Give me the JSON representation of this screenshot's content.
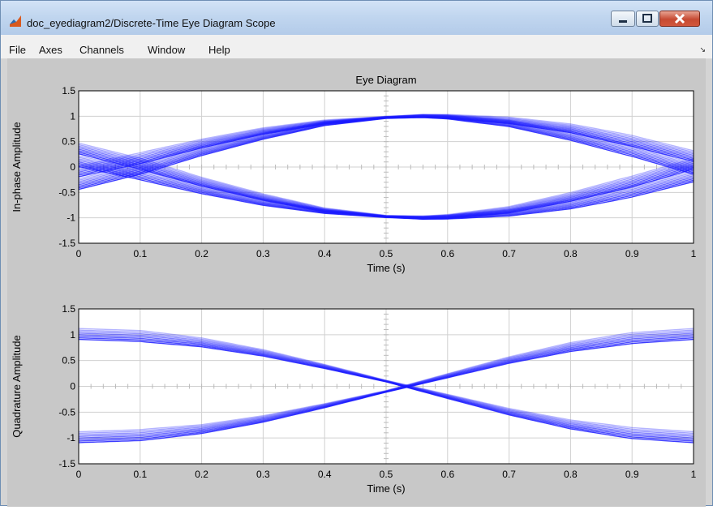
{
  "window": {
    "title": "doc_eyediagram2/Discrete-Time Eye Diagram Scope"
  },
  "menu": [
    "File",
    "Axes",
    "Channels",
    "Window",
    "Help"
  ],
  "colors": {
    "trace": "#1a1aff",
    "background": "#c8c8c8",
    "titlebar": "#c1d6ef"
  },
  "chart_data": [
    {
      "type": "line",
      "title": "Eye Diagram",
      "xlabel": "Time (s)",
      "ylabel": "In-phase Amplitude",
      "xlim": [
        0,
        1
      ],
      "ylim": [
        -1.5,
        1.5
      ],
      "xticks": [
        "0",
        "0.1",
        "0.2",
        "0.3",
        "0.4",
        "0.5",
        "0.6",
        "0.7",
        "0.8",
        "0.9",
        "1"
      ],
      "yticks": [
        "1.5",
        "1",
        "0.5",
        "0",
        "-0.5",
        "-1",
        "-1.5"
      ],
      "grid": true,
      "series": [
        {
          "x": [
            0,
            0.1,
            0.2,
            0.3,
            0.4,
            0.5,
            0.56,
            0.6,
            0.7,
            0.8,
            0.9,
            1
          ],
          "values": [
            -0.1,
            0.16,
            0.45,
            0.7,
            0.88,
            0.98,
            1.0,
            0.99,
            0.91,
            0.75,
            0.5,
            0.2
          ]
        },
        {
          "x": [
            0,
            0.1,
            0.2,
            0.3,
            0.4,
            0.5,
            0.56,
            0.6,
            0.7,
            0.8,
            0.9,
            1
          ],
          "values": [
            0.1,
            -0.16,
            -0.45,
            -0.7,
            -0.88,
            -0.98,
            -1.0,
            -0.99,
            -0.91,
            -0.75,
            -0.5,
            -0.2
          ]
        },
        {
          "x": [
            0,
            0.1,
            0.2,
            0.3,
            0.4,
            0.5,
            0.56,
            0.6,
            0.7,
            0.8,
            0.9,
            1
          ],
          "values": [
            0.35,
            0.05,
            -0.3,
            -0.6,
            -0.85,
            -0.97,
            -1.0,
            -0.98,
            -0.85,
            -0.6,
            -0.3,
            0.05
          ]
        },
        {
          "x": [
            0,
            0.1,
            0.2,
            0.3,
            0.4,
            0.5,
            0.56,
            0.6,
            0.7,
            0.8,
            0.9,
            1
          ],
          "values": [
            -0.35,
            -0.05,
            0.3,
            0.6,
            0.85,
            0.97,
            1.0,
            0.98,
            0.85,
            0.6,
            0.3,
            -0.05
          ]
        }
      ]
    },
    {
      "type": "line",
      "title": "",
      "xlabel": "Time (s)",
      "ylabel": "Quadrature Amplitude",
      "xlim": [
        0,
        1
      ],
      "ylim": [
        -1.5,
        1.5
      ],
      "xticks": [
        "0",
        "0.1",
        "0.2",
        "0.3",
        "0.4",
        "0.5",
        "0.6",
        "0.7",
        "0.8",
        "0.9",
        "1"
      ],
      "yticks": [
        "1.5",
        "1",
        "0.5",
        "0",
        "-0.5",
        "-1",
        "-1.5"
      ],
      "grid": true,
      "series": [
        {
          "x": [
            0,
            0.1,
            0.2,
            0.3,
            0.4,
            0.5,
            0.55,
            0.6,
            0.7,
            0.8,
            0.9,
            1
          ],
          "values": [
            1.0,
            0.96,
            0.84,
            0.64,
            0.38,
            0.1,
            -0.05,
            -0.2,
            -0.5,
            -0.75,
            -0.92,
            -1.0
          ]
        },
        {
          "x": [
            0,
            0.1,
            0.2,
            0.3,
            0.4,
            0.5,
            0.55,
            0.6,
            0.7,
            0.8,
            0.9,
            1
          ],
          "values": [
            -1.0,
            -0.96,
            -0.84,
            -0.64,
            -0.38,
            -0.1,
            0.05,
            0.2,
            0.5,
            0.75,
            0.92,
            1.0
          ]
        }
      ]
    }
  ]
}
